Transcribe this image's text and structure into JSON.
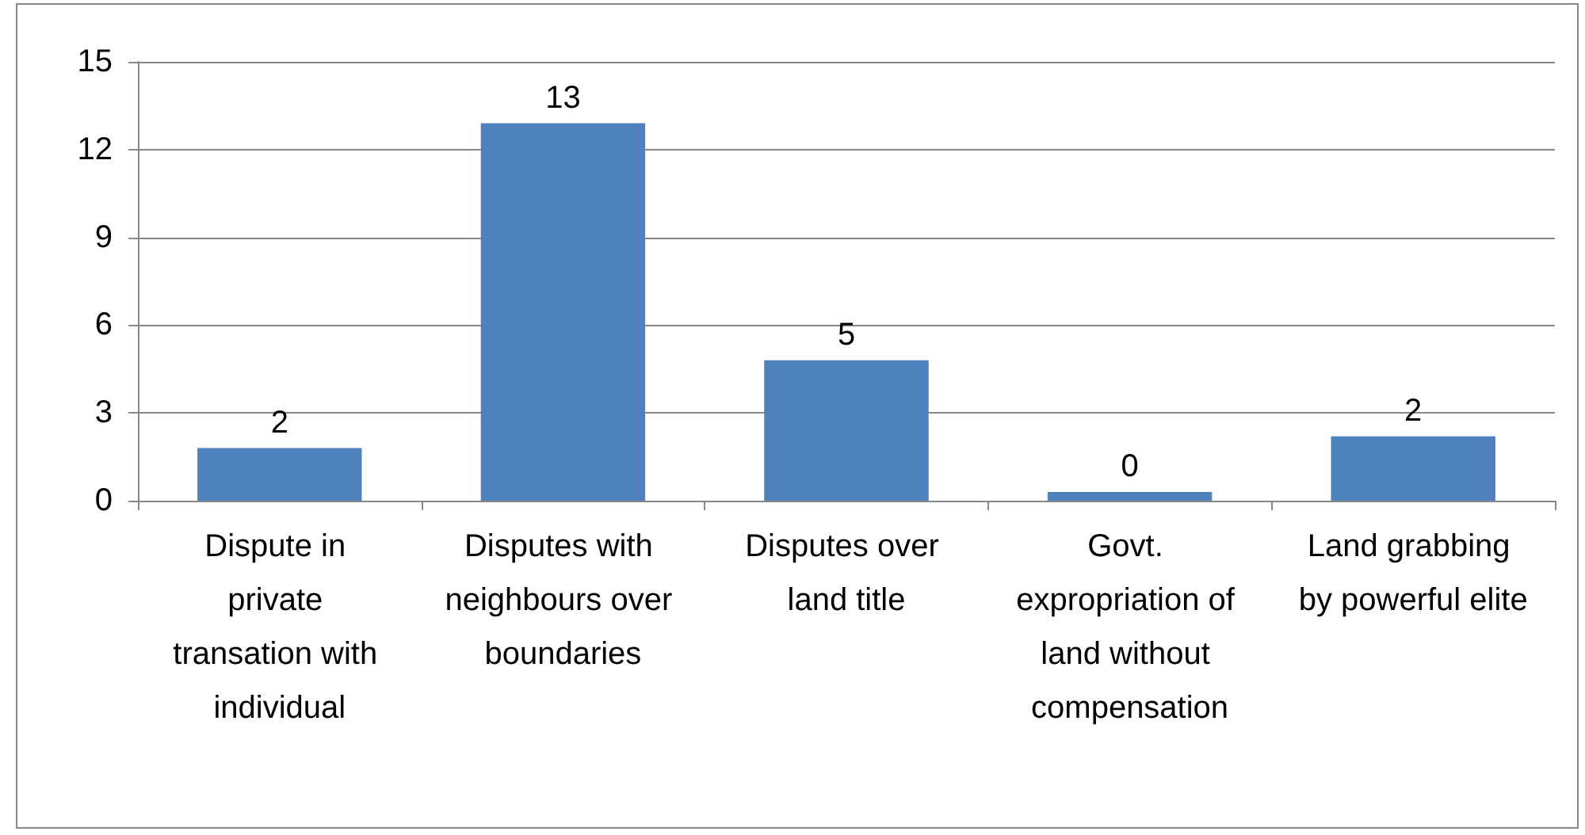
{
  "chart_data": {
    "type": "bar",
    "categories": [
      "Dispute in private transation with individual",
      "Disputes with neighbours over boundaries",
      "Disputes over land title",
      "Govt. expropriation of land without compensation",
      "Land grabbing by powerful elite"
    ],
    "values": [
      1.8,
      12.9,
      4.8,
      0.3,
      2.2
    ],
    "value_labels": [
      "2",
      "13",
      "5",
      "0",
      "2"
    ],
    "color": "#4f81bd",
    "ylim": [
      0,
      15
    ],
    "yticks": [
      0,
      3,
      6,
      9,
      12,
      15
    ],
    "grid": "y"
  }
}
